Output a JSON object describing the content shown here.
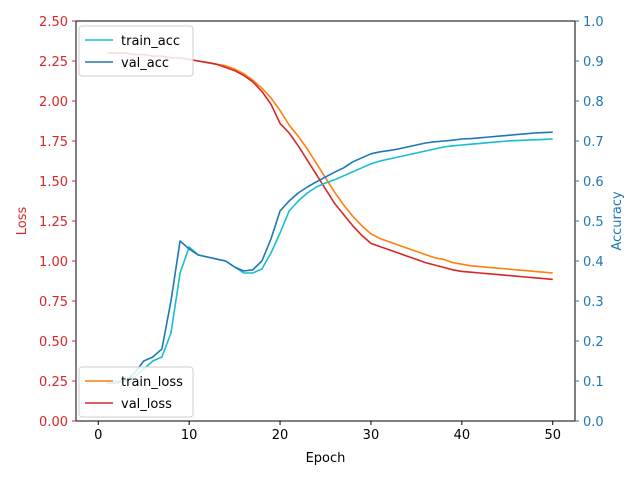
{
  "chart_data": {
    "type": "line",
    "xlabel": "Epoch",
    "ylabel_left": "Loss",
    "ylabel_right": "Accuracy",
    "xlim": [
      -2.45,
      52.45
    ],
    "ylim_left": [
      0,
      2.5
    ],
    "ylim_right": [
      0,
      1.0
    ],
    "x_ticks": [
      0,
      10,
      20,
      30,
      40,
      50
    ],
    "y_left_ticks": [
      0.0,
      0.25,
      0.5,
      0.75,
      1.0,
      1.25,
      1.5,
      1.75,
      2.0,
      2.25,
      2.5
    ],
    "y_right_ticks": [
      0.0,
      0.1,
      0.2,
      0.3,
      0.4,
      0.5,
      0.6,
      0.7,
      0.8,
      0.9,
      1.0
    ],
    "left_axis_color": "#d62728",
    "right_axis_color": "#1f77b4",
    "grid": false,
    "legends": [
      {
        "position": "upper-left",
        "entries": [
          "train_acc",
          "val_acc"
        ]
      },
      {
        "position": "lower-left",
        "entries": [
          "train_loss",
          "val_loss"
        ]
      }
    ],
    "x": [
      1,
      2,
      3,
      4,
      5,
      6,
      7,
      8,
      9,
      10,
      11,
      12,
      13,
      14,
      15,
      16,
      17,
      18,
      19,
      20,
      21,
      22,
      23,
      24,
      25,
      26,
      27,
      28,
      29,
      30,
      31,
      32,
      33,
      34,
      35,
      36,
      37,
      38,
      39,
      40,
      41,
      42,
      43,
      44,
      45,
      46,
      47,
      48,
      49,
      50
    ],
    "series": [
      {
        "name": "train_loss",
        "axis": "left",
        "color": "#ff7f0e",
        "values": [
          2.3,
          2.3,
          2.3,
          2.29,
          2.29,
          2.28,
          2.28,
          2.27,
          2.27,
          2.26,
          2.25,
          2.24,
          2.23,
          2.22,
          2.2,
          2.17,
          2.13,
          2.08,
          2.02,
          1.94,
          1.85,
          1.78,
          1.7,
          1.61,
          1.52,
          1.43,
          1.35,
          1.28,
          1.22,
          1.17,
          1.14,
          1.12,
          1.1,
          1.08,
          1.06,
          1.04,
          1.02,
          1.01,
          0.99,
          0.98,
          0.97,
          0.965,
          0.96,
          0.955,
          0.95,
          0.945,
          0.94,
          0.935,
          0.93,
          0.925
        ]
      },
      {
        "name": "val_loss",
        "axis": "left",
        "color": "#d62728",
        "values": [
          2.3,
          2.3,
          2.3,
          2.29,
          2.29,
          2.28,
          2.28,
          2.27,
          2.27,
          2.26,
          2.25,
          2.24,
          2.23,
          2.21,
          2.19,
          2.16,
          2.12,
          2.06,
          1.98,
          1.86,
          1.8,
          1.72,
          1.63,
          1.54,
          1.45,
          1.36,
          1.29,
          1.22,
          1.16,
          1.11,
          1.09,
          1.07,
          1.05,
          1.03,
          1.01,
          0.99,
          0.975,
          0.96,
          0.945,
          0.935,
          0.93,
          0.925,
          0.92,
          0.915,
          0.91,
          0.905,
          0.9,
          0.895,
          0.89,
          0.885
        ]
      },
      {
        "name": "train_acc",
        "axis": "right",
        "color": "#17becf",
        "values": [
          0.1,
          0.1,
          0.1,
          0.11,
          0.13,
          0.15,
          0.16,
          0.22,
          0.37,
          0.435,
          0.415,
          0.41,
          0.405,
          0.4,
          0.385,
          0.37,
          0.37,
          0.38,
          0.42,
          0.47,
          0.525,
          0.55,
          0.57,
          0.585,
          0.595,
          0.603,
          0.613,
          0.623,
          0.633,
          0.643,
          0.65,
          0.655,
          0.66,
          0.665,
          0.67,
          0.675,
          0.68,
          0.685,
          0.688,
          0.69,
          0.692,
          0.694,
          0.696,
          0.698,
          0.7,
          0.701,
          0.702,
          0.703,
          0.704,
          0.705
        ]
      },
      {
        "name": "val_acc",
        "axis": "right",
        "color": "#1f77b4",
        "values": [
          0.095,
          0.095,
          0.1,
          0.12,
          0.15,
          0.16,
          0.18,
          0.3,
          0.45,
          0.43,
          0.415,
          0.41,
          0.405,
          0.4,
          0.385,
          0.375,
          0.378,
          0.4,
          0.455,
          0.525,
          0.55,
          0.57,
          0.585,
          0.598,
          0.61,
          0.622,
          0.633,
          0.648,
          0.658,
          0.668,
          0.673,
          0.676,
          0.68,
          0.685,
          0.69,
          0.695,
          0.698,
          0.7,
          0.702,
          0.705,
          0.706,
          0.708,
          0.71,
          0.712,
          0.714,
          0.716,
          0.718,
          0.72,
          0.721,
          0.722
        ]
      }
    ]
  }
}
